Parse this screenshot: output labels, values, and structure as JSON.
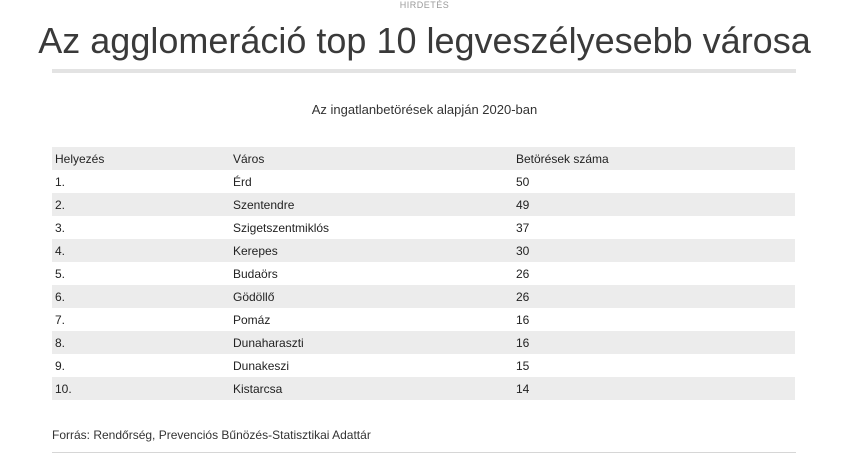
{
  "ad_label": "HIRDETÉS",
  "title": "Az agglomeráció top 10 legveszélyesebb városa",
  "table": {
    "subtitle": "Az ingatlanbetörések alapján 2020-ban",
    "headers": {
      "rank": "Helyezés",
      "city": "Város",
      "count": "Betörések száma"
    },
    "rows": [
      {
        "rank": "1.",
        "city": "Érd",
        "count": "50"
      },
      {
        "rank": "2.",
        "city": "Szentendre",
        "count": "49"
      },
      {
        "rank": "3.",
        "city": "Szigetszentmiklós",
        "count": "37"
      },
      {
        "rank": "4.",
        "city": "Kerepes",
        "count": "30"
      },
      {
        "rank": "5.",
        "city": "Budaörs",
        "count": "26"
      },
      {
        "rank": "6.",
        "city": "Gödöllő",
        "count": "26"
      },
      {
        "rank": "7.",
        "city": "Pomáz",
        "count": "16"
      },
      {
        "rank": "8.",
        "city": "Dunaharaszti",
        "count": "16"
      },
      {
        "rank": "9.",
        "city": "Dunakeszi",
        "count": "15"
      },
      {
        "rank": "10.",
        "city": "Kistarcsa",
        "count": "14"
      }
    ]
  },
  "source": "Forrás: Rendőrség, Prevenciós Bűnözés-Statisztikai Adattár"
}
